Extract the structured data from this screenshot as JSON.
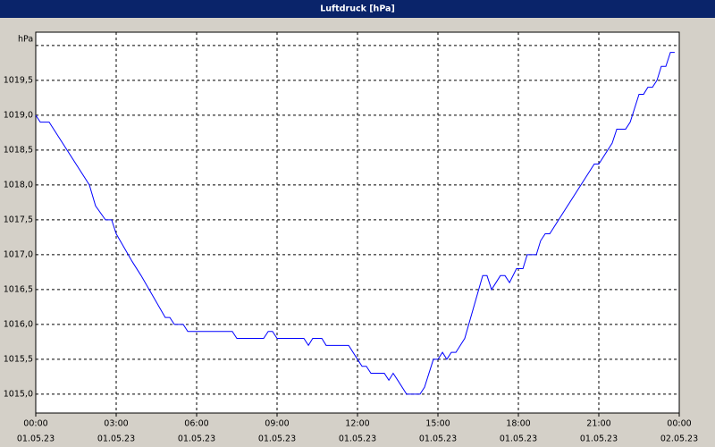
{
  "chart_data": {
    "type": "line",
    "title": "Luftdruck [hPa]",
    "y_label": "hPa",
    "x": [
      0,
      0.17,
      0.5,
      2.0,
      2.23,
      2.6,
      2.83,
      3.0,
      3.6,
      3.93,
      4.83,
      5.0,
      5.17,
      5.5,
      5.67,
      7.33,
      7.5,
      8.5,
      8.67,
      8.83,
      9.0,
      10.0,
      10.17,
      10.33,
      10.67,
      10.83,
      11.67,
      12.0,
      12.17,
      12.33,
      12.5,
      13.0,
      13.17,
      13.33,
      13.5,
      13.83,
      14.33,
      14.5,
      14.83,
      15.0,
      15.17,
      15.33,
      15.5,
      15.67,
      16.0,
      16.67,
      16.83,
      17.0,
      17.33,
      17.5,
      17.67,
      17.93,
      18.17,
      18.33,
      18.67,
      18.83,
      19.0,
      19.17,
      20.83,
      21.0,
      21.5,
      21.67,
      22.0,
      22.17,
      22.5,
      22.67,
      22.83,
      23.0,
      23.17,
      23.33,
      23.5,
      23.67,
      23.83
    ],
    "series": [
      {
        "name": "Luftdruck",
        "color": "#0000ff",
        "values": [
          1019.0,
          1018.9,
          1018.9,
          1018.0,
          1017.7,
          1017.5,
          1017.5,
          1017.3,
          1016.9,
          1016.7,
          1016.1,
          1016.1,
          1016.0,
          1016.0,
          1015.9,
          1015.9,
          1015.8,
          1015.8,
          1015.9,
          1015.9,
          1015.8,
          1015.8,
          1015.7,
          1015.8,
          1015.8,
          1015.7,
          1015.7,
          1015.5,
          1015.4,
          1015.4,
          1015.3,
          1015.3,
          1015.2,
          1015.3,
          1015.2,
          1015.0,
          1015.0,
          1015.1,
          1015.5,
          1015.5,
          1015.6,
          1015.5,
          1015.6,
          1015.6,
          1015.8,
          1016.7,
          1016.7,
          1016.5,
          1016.7,
          1016.7,
          1016.6,
          1016.8,
          1016.8,
          1017.0,
          1017.0,
          1017.2,
          1017.3,
          1017.3,
          1018.3,
          1018.3,
          1018.6,
          1018.8,
          1018.8,
          1018.9,
          1019.3,
          1019.3,
          1019.4,
          1019.4,
          1019.5,
          1019.7,
          1019.7,
          1019.9,
          1019.9
        ]
      }
    ],
    "xlim": [
      0,
      24
    ],
    "xticks": [
      {
        "value": 0,
        "label": [
          "00:00",
          "01.05.23"
        ]
      },
      {
        "value": 3,
        "label": [
          "03:00",
          "01.05.23"
        ]
      },
      {
        "value": 6,
        "label": [
          "06:00",
          "01.05.23"
        ]
      },
      {
        "value": 9,
        "label": [
          "09:00",
          "01.05.23"
        ]
      },
      {
        "value": 12,
        "label": [
          "12:00",
          "01.05.23"
        ]
      },
      {
        "value": 15,
        "label": [
          "15:00",
          "01.05.23"
        ]
      },
      {
        "value": 18,
        "label": [
          "18:00",
          "01.05.23"
        ]
      },
      {
        "value": 21,
        "label": [
          "21:00",
          "01.05.23"
        ]
      },
      {
        "value": 24,
        "label": [
          "00:00",
          "02.05.23"
        ]
      }
    ],
    "ylim": [
      1014.73,
      1020.19
    ],
    "yticks": [
      {
        "value": 1015,
        "label": "1015,0"
      },
      {
        "value": 1015.5,
        "label": "1015,5"
      },
      {
        "value": 1016,
        "label": "1016,0"
      },
      {
        "value": 1016.5,
        "label": "1016,5"
      },
      {
        "value": 1017,
        "label": "1017,0"
      },
      {
        "value": 1017.5,
        "label": "1017,5"
      },
      {
        "value": 1018,
        "label": "1018,0"
      },
      {
        "value": 1018.5,
        "label": "1018,5"
      },
      {
        "value": 1019,
        "label": "1019,0"
      },
      {
        "value": 1019.5,
        "label": "1019,5"
      },
      {
        "value": 1020,
        "label": null
      }
    ],
    "grid": true
  }
}
